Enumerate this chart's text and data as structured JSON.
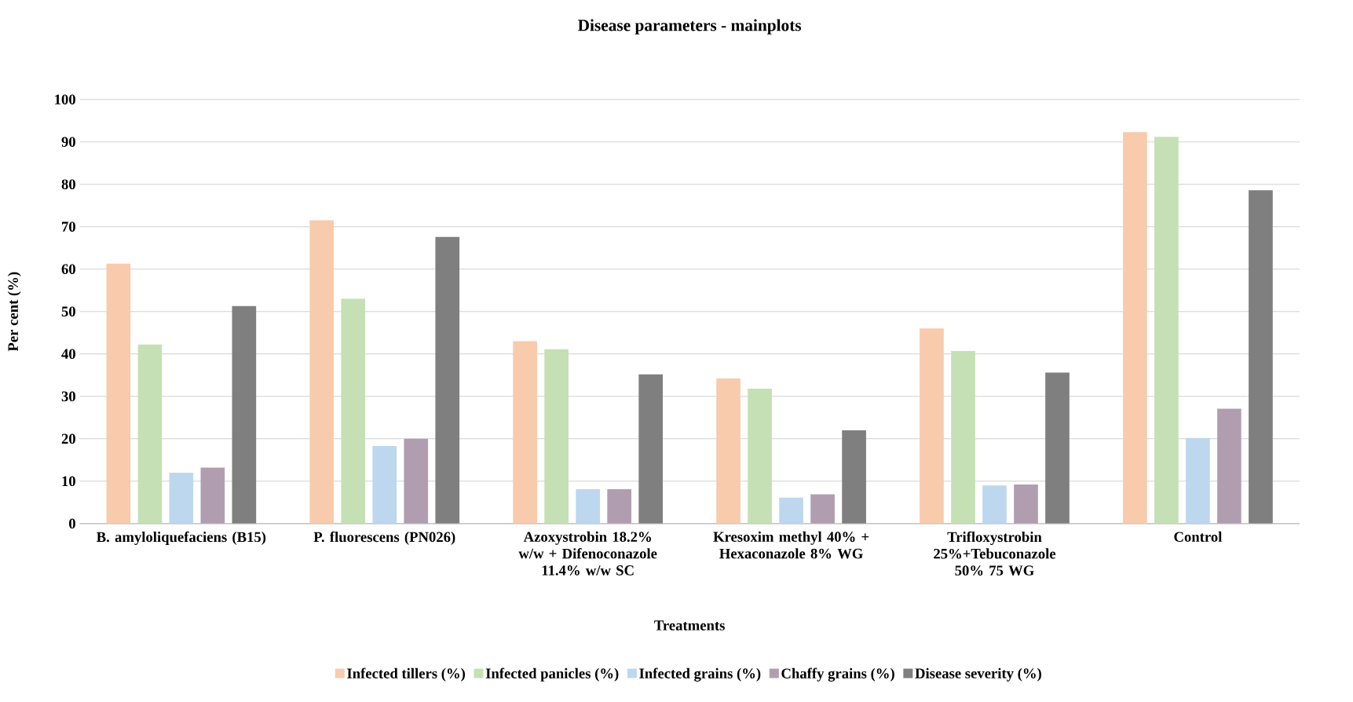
{
  "chart_data": {
    "type": "bar",
    "title": "Disease parameters - mainplots",
    "xlabel": "Treatments",
    "ylabel": "Per cent (%)",
    "categories": [
      "B. amyloliquefaciens (B15)",
      "P. fluorescens (PN026)",
      "Azoxystrobin 18.2% w/w + Difenoconazole 11.4% w/w SC",
      "Kresoxim methyl 40% + Hexaconazole 8% WG",
      "Trifloxystrobin 25%+Tebuconazole 50% 75 WG",
      "Control"
    ],
    "series": [
      {
        "name": "Infected tillers (%)",
        "color": "#f8cbad",
        "values": [
          61.3,
          71.5,
          43.0,
          34.2,
          46.0,
          92.3
        ]
      },
      {
        "name": "Infected panicles (%)",
        "color": "#c5e0b4",
        "values": [
          42.2,
          53.0,
          41.1,
          31.8,
          40.7,
          91.2
        ]
      },
      {
        "name": "Infected grains (%)",
        "color": "#bdd7ee",
        "values": [
          12.0,
          18.3,
          8.1,
          6.1,
          9.0,
          20.2
        ]
      },
      {
        "name": "Chaffy grains (%)",
        "color": "#b09eb0",
        "values": [
          13.2,
          20.0,
          8.1,
          6.9,
          9.2,
          27.1
        ]
      },
      {
        "name": "Disease severity (%)",
        "color": "#7f7f7f",
        "values": [
          51.3,
          67.6,
          35.2,
          22.0,
          35.6,
          78.6
        ]
      }
    ],
    "ylim": [
      0,
      100
    ],
    "yticks": [
      0,
      10,
      20,
      30,
      40,
      50,
      60,
      70,
      80,
      90,
      100
    ],
    "grid": "y",
    "legend": "bottom"
  }
}
